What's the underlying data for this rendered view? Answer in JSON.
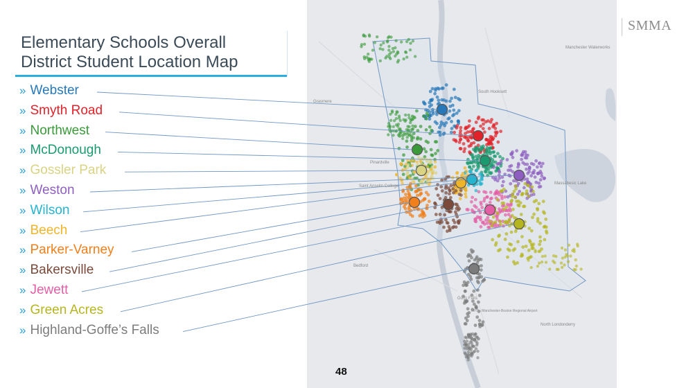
{
  "slide": {
    "title_line1": "Elementary Schools Overall",
    "title_line2": "District Student Location Map",
    "brand": "SMMA",
    "page_number": "48"
  },
  "map": {
    "place_labels": [
      "Manchester Waterworks",
      "South Hooksett",
      "Pinardville",
      "Saint Anselm College",
      "Bedford",
      "MHT - Manchester-Boston Regional Airport",
      "North Londonderry",
      "Massabesic Lake",
      "Goffs Falls",
      "Grasmere"
    ],
    "legend": [
      {
        "name": "Webster",
        "color": "#2778b9"
      },
      {
        "name": "Smyth Road",
        "color": "#e0222a"
      },
      {
        "name": "Northwest",
        "color": "#3a9a3a"
      },
      {
        "name": "McDonough",
        "color": "#1a9a6e"
      },
      {
        "name": "Gossler Park",
        "color": "#d9d384"
      },
      {
        "name": "Weston",
        "color": "#8e5fc0"
      },
      {
        "name": "Wilson",
        "color": "#25b4cf"
      },
      {
        "name": "Beech",
        "color": "#f0b429"
      },
      {
        "name": "Parker-Varney",
        "color": "#f07f1c"
      },
      {
        "name": "Bakersville",
        "color": "#7b4a3a"
      },
      {
        "name": "Jewett",
        "color": "#e45ea5"
      },
      {
        "name": "Green Acres",
        "color": "#b5b520"
      },
      {
        "name": "Highland-Goffe’s Falls",
        "color": "#7c7c7c"
      }
    ]
  }
}
